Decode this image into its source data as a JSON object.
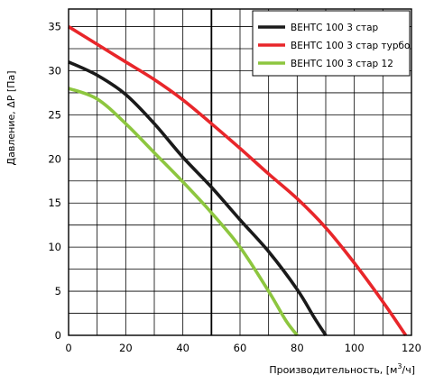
{
  "chart_data": {
    "type": "line",
    "title": "",
    "xlabel": "Производительность, [м",
    "xlabel_sup": "3",
    "xlabel_end": "/ч]",
    "ylabel": "Давление, ΔP [Па]",
    "xlim": [
      0,
      120
    ],
    "ylim": [
      0,
      37
    ],
    "x_ticks": [
      0,
      20,
      40,
      60,
      80,
      100,
      120
    ],
    "y_ticks": [
      0,
      5,
      10,
      15,
      20,
      25,
      30,
      35
    ],
    "grid": true,
    "legend_position": "top-right",
    "reference_line_x": 50,
    "series": [
      {
        "name": "ВЕНТС 100 3 стар",
        "color": "#1a1a1a",
        "x": [
          0,
          10,
          20,
          30,
          40,
          50,
          60,
          70,
          80,
          86,
          90
        ],
        "y": [
          31,
          29.5,
          27.3,
          24,
          20.2,
          16.8,
          13.1,
          9.5,
          5.2,
          2,
          0
        ]
      },
      {
        "name": "ВЕНТС 100 3 стар турбо",
        "color": "#e8262a",
        "x": [
          0,
          10,
          20,
          30,
          40,
          50,
          60,
          70,
          80,
          90,
          100,
          110,
          118
        ],
        "y": [
          35,
          33,
          31,
          29,
          26.7,
          24,
          21.2,
          18.3,
          15.5,
          12.2,
          8.2,
          3.8,
          0
        ]
      },
      {
        "name": "ВЕНТС 100 3 стар 12",
        "color": "#8dc63f",
        "x": [
          0,
          10,
          20,
          30,
          40,
          50,
          60,
          70,
          76,
          80
        ],
        "y": [
          28,
          26.8,
          24,
          20.7,
          17.4,
          13.9,
          10,
          5,
          1.7,
          0
        ]
      }
    ]
  }
}
